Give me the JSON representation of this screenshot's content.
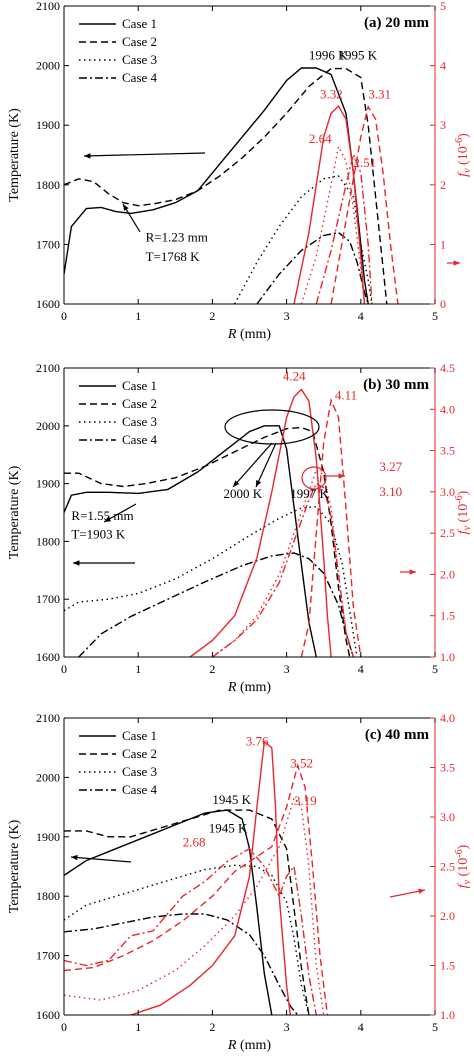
{
  "colors": {
    "temperature": "#000000",
    "fv": "#e8262b"
  },
  "chart_data": [
    {
      "type": "line",
      "title": "(a) 20 mm",
      "xlabel": "R (mm)",
      "ylabel": "Temperature (K)",
      "ylabel_right": "f_v (10^-6)",
      "xlim": [
        0,
        5
      ],
      "ylim": [
        1600,
        2100
      ],
      "ylim_right": [
        0,
        5
      ],
      "xticks": [
        "0",
        "1",
        "2",
        "3",
        "4",
        "5"
      ],
      "yticks": [
        "1600",
        "1700",
        "1800",
        "1900",
        "2000",
        "2100"
      ],
      "yticks_right": [
        "0",
        "1",
        "2",
        "3",
        "4",
        "5"
      ],
      "legend": [
        "Case 1",
        "Case 2",
        "Case 3",
        "Case 4"
      ],
      "legend_position": "top-left",
      "series": [
        {
          "name": "Case 1",
          "axis": "left",
          "x": [
            0,
            0.1,
            0.3,
            0.5,
            0.7,
            0.9,
            1.2,
            1.5,
            1.8,
            2.1,
            2.4,
            2.7,
            3.0,
            3.2,
            3.4,
            3.6,
            3.8,
            3.9,
            4.0,
            4.05,
            4.1
          ],
          "values": [
            1650,
            1730,
            1760,
            1762,
            1755,
            1752,
            1758,
            1770,
            1790,
            1835,
            1880,
            1925,
            1975,
            1996,
            1996,
            1985,
            1920,
            1820,
            1700,
            1640,
            1600
          ]
        },
        {
          "name": "Case 2",
          "axis": "left",
          "x": [
            0,
            0.2,
            0.4,
            0.6,
            0.8,
            1.0,
            1.2,
            1.5,
            1.8,
            2.1,
            2.4,
            2.7,
            3.0,
            3.3,
            3.6,
            3.8,
            4.0,
            4.1,
            4.2,
            4.3,
            4.35
          ],
          "values": [
            1800,
            1810,
            1805,
            1785,
            1770,
            1765,
            1768,
            1775,
            1790,
            1815,
            1845,
            1880,
            1920,
            1965,
            1995,
            1995,
            1980,
            1900,
            1780,
            1660,
            1600
          ]
        },
        {
          "name": "Case 3",
          "axis": "left",
          "x": [
            2.3,
            2.6,
            2.9,
            3.2,
            3.5,
            3.7,
            3.9,
            4.0,
            4.1,
            4.15
          ],
          "values": [
            1600,
            1670,
            1730,
            1780,
            1810,
            1815,
            1780,
            1700,
            1640,
            1600
          ]
        },
        {
          "name": "Case 4",
          "axis": "left",
          "x": [
            2.6,
            2.9,
            3.2,
            3.5,
            3.7,
            3.85,
            3.95,
            4.05,
            4.1
          ],
          "values": [
            1600,
            1650,
            1690,
            1715,
            1720,
            1705,
            1670,
            1620,
            1600
          ]
        },
        {
          "name": "Case 1",
          "axis": "right",
          "x": [
            3.1,
            3.3,
            3.5,
            3.6,
            3.7,
            3.8,
            3.9,
            4.0,
            4.05
          ],
          "values": [
            0,
            1.2,
            2.8,
            3.2,
            3.32,
            3.1,
            2.2,
            0.8,
            0
          ]
        },
        {
          "name": "Case 2",
          "axis": "right",
          "x": [
            3.6,
            3.8,
            4.0,
            4.1,
            4.2,
            4.3,
            4.4,
            4.5
          ],
          "values": [
            0,
            1.4,
            2.8,
            3.31,
            3.1,
            2.2,
            1.0,
            0
          ]
        },
        {
          "name": "Case 3",
          "axis": "right",
          "x": [
            3.2,
            3.4,
            3.6,
            3.7,
            3.8,
            3.9,
            4.0,
            4.05
          ],
          "values": [
            0,
            0.8,
            2.0,
            2.64,
            2.4,
            1.6,
            0.6,
            0
          ]
        },
        {
          "name": "Case 4",
          "axis": "right",
          "x": [
            3.4,
            3.6,
            3.8,
            3.9,
            4.0,
            4.1,
            4.15
          ],
          "values": [
            0,
            0.9,
            2.0,
            2.51,
            2.2,
            1.0,
            0
          ]
        }
      ],
      "annotations": [
        {
          "text": "1996 K",
          "x": 3.3,
          "y": 2010
        },
        {
          "text": "1995 K",
          "x": 3.7,
          "y": 2010
        },
        {
          "text": "R=1.23 mm",
          "x": 1.1,
          "y": 1705
        },
        {
          "text": "T=1768 K",
          "x": 1.1,
          "y": 1672
        }
      ],
      "red_labels": [
        {
          "text": "3.32",
          "x": 3.45,
          "y": 3.45
        },
        {
          "text": "3.31",
          "x": 4.1,
          "y": 3.45
        },
        {
          "text": "2.64",
          "x": 3.3,
          "y": 2.7
        },
        {
          "text": "2.51",
          "x": 3.9,
          "y": 2.3
        }
      ]
    },
    {
      "type": "line",
      "title": "(b) 30 mm",
      "xlabel": "R (mm)",
      "ylabel": "Temperature (K)",
      "ylabel_right": "f_v (10^-6)",
      "xlim": [
        0,
        5
      ],
      "ylim": [
        1600,
        2100
      ],
      "ylim_right": [
        1.0,
        4.5
      ],
      "xticks": [
        "0",
        "1",
        "2",
        "3",
        "4",
        "5"
      ],
      "yticks": [
        "1600",
        "1700",
        "1800",
        "1900",
        "2000",
        "2100"
      ],
      "yticks_right": [
        "1.0",
        "1.5",
        "2.0",
        "2.5",
        "3.0",
        "3.5",
        "4.0",
        "4.5"
      ],
      "legend": [
        "Case 1",
        "Case 2",
        "Case 3",
        "Case 4"
      ],
      "legend_position": "top-left",
      "series": [
        {
          "name": "Case 1",
          "axis": "left",
          "x": [
            0,
            0.1,
            0.3,
            0.6,
            1.0,
            1.4,
            1.8,
            2.2,
            2.5,
            2.7,
            2.9,
            3.0,
            3.1,
            3.2,
            3.3,
            3.4
          ],
          "values": [
            1850,
            1880,
            1885,
            1885,
            1883,
            1890,
            1920,
            1960,
            1990,
            2000,
            2000,
            1960,
            1860,
            1760,
            1660,
            1600
          ]
        },
        {
          "name": "Case 2",
          "axis": "left",
          "x": [
            0,
            0.2,
            0.5,
            0.8,
            1.1,
            1.5,
            1.9,
            2.3,
            2.7,
            3.0,
            3.2,
            3.35,
            3.5,
            3.6,
            3.7,
            3.8,
            3.85
          ],
          "values": [
            1918,
            1918,
            1900,
            1895,
            1900,
            1910,
            1930,
            1955,
            1980,
            1995,
            1997,
            1990,
            1920,
            1830,
            1720,
            1630,
            1600
          ]
        },
        {
          "name": "Case 3",
          "axis": "left",
          "x": [
            0,
            0.2,
            0.6,
            1.0,
            1.5,
            2.0,
            2.5,
            2.9,
            3.2,
            3.4,
            3.6,
            3.75,
            3.85,
            3.95
          ],
          "values": [
            1680,
            1695,
            1700,
            1710,
            1735,
            1770,
            1810,
            1840,
            1858,
            1860,
            1830,
            1760,
            1680,
            1600
          ]
        },
        {
          "name": "Case 4",
          "axis": "left",
          "x": [
            0.2,
            0.5,
            0.9,
            1.4,
            1.9,
            2.4,
            2.8,
            3.1,
            3.3,
            3.5,
            3.7,
            3.8,
            3.9
          ],
          "values": [
            1600,
            1640,
            1670,
            1700,
            1730,
            1758,
            1775,
            1780,
            1770,
            1745,
            1690,
            1640,
            1600
          ]
        },
        {
          "name": "Case 1",
          "axis": "right",
          "x": [
            1.7,
            2.0,
            2.3,
            2.6,
            2.8,
            3.0,
            3.1,
            3.2,
            3.3,
            3.4,
            3.5,
            3.55,
            3.6
          ],
          "values": [
            1.0,
            1.2,
            1.5,
            2.2,
            3.0,
            3.9,
            4.15,
            4.24,
            4.1,
            3.4,
            2.2,
            1.5,
            1.0
          ]
        },
        {
          "name": "Case 2",
          "axis": "right",
          "x": [
            3.2,
            3.3,
            3.4,
            3.5,
            3.6,
            3.7,
            3.8,
            3.9,
            4.0
          ],
          "values": [
            1.0,
            1.4,
            2.5,
            3.6,
            4.11,
            3.9,
            2.8,
            1.6,
            1.0
          ]
        },
        {
          "name": "Case 3",
          "axis": "right",
          "x": [
            2.0,
            2.3,
            2.6,
            2.9,
            3.1,
            3.3,
            3.4,
            3.5,
            3.6,
            3.7,
            3.8,
            3.9
          ],
          "values": [
            1.0,
            1.2,
            1.5,
            2.0,
            2.5,
            3.0,
            3.27,
            3.2,
            2.8,
            2.0,
            1.3,
            1.0
          ]
        },
        {
          "name": "Case 4",
          "axis": "right",
          "x": [
            2.0,
            2.3,
            2.6,
            2.9,
            3.1,
            3.3,
            3.4,
            3.5,
            3.6,
            3.7,
            3.8,
            3.9
          ],
          "values": [
            1.0,
            1.2,
            1.45,
            1.9,
            2.4,
            2.9,
            3.1,
            3.05,
            2.7,
            2.0,
            1.3,
            1.0
          ]
        }
      ],
      "annotations": [
        {
          "text": "2000 K",
          "x": 2.15,
          "y": 1875
        },
        {
          "text": "1997 K",
          "x": 3.05,
          "y": 1875
        },
        {
          "text": "R=1.55 mm",
          "x": 0.1,
          "y": 1837
        },
        {
          "text": "T=1903 K",
          "x": 0.1,
          "y": 1805
        }
      ],
      "red_labels": [
        {
          "text": "4.24",
          "x": 2.95,
          "y": 4.35
        },
        {
          "text": "4.11",
          "x": 3.65,
          "y": 4.12
        },
        {
          "text": "3.27",
          "x": 4.25,
          "y": 3.25
        },
        {
          "text": "3.10",
          "x": 4.25,
          "y": 2.95
        }
      ]
    },
    {
      "type": "line",
      "title": "(c) 40 mm",
      "xlabel": "R (mm)",
      "ylabel": "Temperature (K)",
      "ylabel_right": "f_v (10^-6)",
      "xlim": [
        0,
        5
      ],
      "ylim": [
        1600,
        2100
      ],
      "ylim_right": [
        1.0,
        4.0
      ],
      "xticks": [
        "0",
        "1",
        "2",
        "3",
        "4",
        "5"
      ],
      "yticks": [
        "1600",
        "1700",
        "1800",
        "1900",
        "2000",
        "2100"
      ],
      "yticks_right": [
        "1.0",
        "1.5",
        "2.0",
        "2.5",
        "3.0",
        "3.5",
        "4.0"
      ],
      "legend": [
        "Case 1",
        "Case 2",
        "Case 3",
        "Case 4"
      ],
      "legend_position": "top-left",
      "series": [
        {
          "name": "Case 1",
          "axis": "left",
          "x": [
            0,
            0.3,
            0.7,
            1.1,
            1.5,
            1.9,
            2.2,
            2.4,
            2.5,
            2.6,
            2.7,
            2.8
          ],
          "values": [
            1835,
            1860,
            1880,
            1900,
            1920,
            1940,
            1945,
            1930,
            1880,
            1780,
            1670,
            1600
          ]
        },
        {
          "name": "Case 2",
          "axis": "left",
          "x": [
            0,
            0.3,
            0.6,
            0.9,
            1.3,
            1.7,
            2.1,
            2.5,
            2.8,
            3.0,
            3.1,
            3.2,
            3.3
          ],
          "values": [
            1910,
            1910,
            1900,
            1900,
            1915,
            1930,
            1945,
            1945,
            1930,
            1880,
            1780,
            1680,
            1600
          ]
        },
        {
          "name": "Case 3",
          "axis": "left",
          "x": [
            0,
            0.3,
            0.7,
            1.1,
            1.5,
            1.9,
            2.3,
            2.6,
            2.8,
            3.0,
            3.1,
            3.2,
            3.3
          ],
          "values": [
            1760,
            1785,
            1800,
            1815,
            1830,
            1845,
            1852,
            1850,
            1835,
            1790,
            1730,
            1650,
            1600
          ]
        },
        {
          "name": "Case 4",
          "axis": "left",
          "x": [
            0,
            0.4,
            0.8,
            1.2,
            1.6,
            1.9,
            2.2,
            2.5,
            2.7,
            2.9,
            3.05,
            3.15
          ],
          "values": [
            1740,
            1745,
            1755,
            1765,
            1770,
            1770,
            1760,
            1735,
            1700,
            1650,
            1615,
            1600
          ]
        },
        {
          "name": "Case 1",
          "axis": "right",
          "x": [
            0.9,
            1.3,
            1.7,
            2.0,
            2.3,
            2.5,
            2.6,
            2.7,
            2.8,
            2.85,
            2.9,
            3.0,
            3.05
          ],
          "values": [
            1.0,
            1.1,
            1.3,
            1.5,
            1.8,
            2.4,
            3.1,
            3.76,
            3.7,
            3.1,
            2.2,
            1.3,
            1.0
          ]
        },
        {
          "name": "Case 2",
          "axis": "right",
          "x": [
            0,
            0.4,
            0.8,
            1.2,
            1.6,
            2.0,
            2.3,
            2.6,
            2.8,
            3.0,
            3.15,
            3.25,
            3.35,
            3.45,
            3.55
          ],
          "values": [
            1.45,
            1.48,
            1.6,
            1.75,
            1.95,
            2.2,
            2.45,
            2.6,
            2.7,
            3.1,
            3.52,
            3.3,
            2.5,
            1.6,
            1.0
          ]
        },
        {
          "name": "Case 3",
          "axis": "right",
          "x": [
            0,
            0.5,
            1.0,
            1.5,
            1.9,
            2.3,
            2.6,
            2.9,
            3.1,
            3.2,
            3.3,
            3.4,
            3.5
          ],
          "values": [
            1.2,
            1.15,
            1.25,
            1.45,
            1.7,
            2.0,
            2.3,
            2.7,
            3.19,
            3.1,
            2.5,
            1.5,
            1.0
          ]
        },
        {
          "name": "Case 4",
          "axis": "right",
          "x": [
            0,
            0.3,
            0.6,
            0.9,
            1.2,
            1.6,
            1.9,
            2.2,
            2.5,
            2.7,
            2.9,
            3.0,
            3.1,
            3.2,
            3.3,
            3.4
          ],
          "values": [
            1.55,
            1.5,
            1.55,
            1.8,
            1.85,
            2.2,
            2.35,
            2.55,
            2.68,
            2.5,
            2.2,
            2.4,
            2.5,
            2.0,
            1.4,
            1.0
          ]
        }
      ],
      "annotations": [
        {
          "text": "1945 K",
          "x": 2.0,
          "y": 1955
        },
        {
          "text": "1945 K",
          "x": 1.95,
          "y": 1907
        }
      ],
      "red_labels": [
        {
          "text": "3.76",
          "x": 2.45,
          "y": 3.72
        },
        {
          "text": "3.52",
          "x": 3.05,
          "y": 3.5
        },
        {
          "text": "3.19",
          "x": 3.1,
          "y": 3.12
        },
        {
          "text": "2.68",
          "x": 1.6,
          "y": 2.7
        }
      ]
    }
  ]
}
